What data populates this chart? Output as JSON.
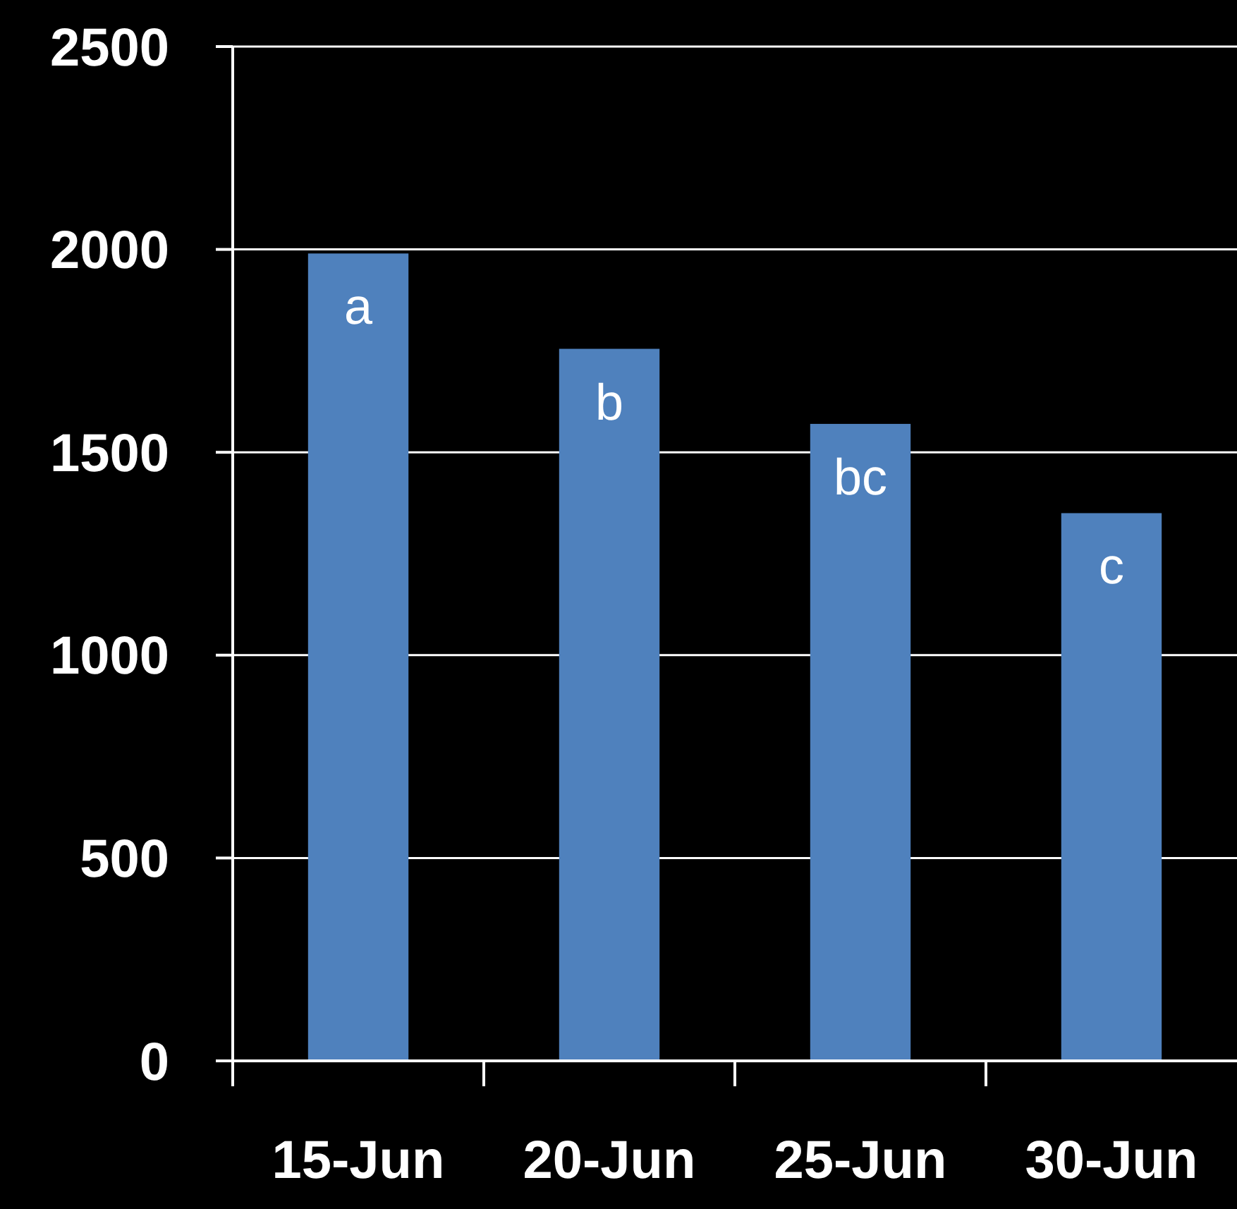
{
  "chart_data": {
    "type": "bar",
    "categories": [
      "15-Jun",
      "20-Jun",
      "25-Jun",
      "30-Jun"
    ],
    "values": [
      1990,
      1755,
      1570,
      1350
    ],
    "color": "#4f81bd",
    "ylim": [
      0,
      2500
    ],
    "yticks": [
      0,
      500,
      1000,
      1500,
      2000,
      2500
    ],
    "grid": "y",
    "annotations": [
      {
        "text": "a",
        "x": "15-Jun",
        "y": 1990
      },
      {
        "text": "b",
        "x": "20-Jun",
        "y": 1755
      },
      {
        "text": "bc",
        "x": "25-Jun",
        "y": 1570
      },
      {
        "text": "c",
        "x": "30-Jun",
        "y": 1350
      }
    ]
  }
}
